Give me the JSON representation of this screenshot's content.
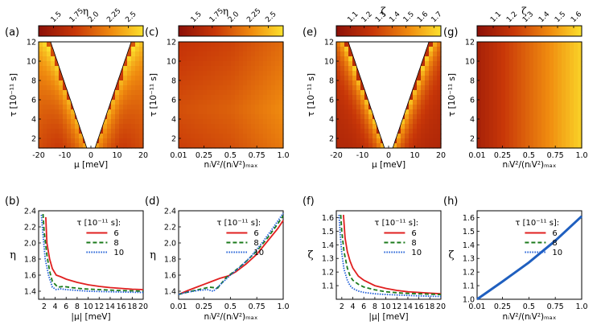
{
  "chart_data": [
    {
      "panel": "(a)",
      "type": "heatmap",
      "colorbar": {
        "symbol": "η",
        "ticks": [
          "1.5",
          "1.75",
          "2.0",
          "2.25",
          "2.5"
        ],
        "range": [
          1.3,
          2.7
        ]
      },
      "xlabel": "μ [meV]",
      "ylabel": "τ [10⁻¹¹ s]",
      "xticks": [
        "-20",
        "-10",
        "0",
        "10",
        "20"
      ],
      "yticks": [
        "2",
        "4",
        "6",
        "8",
        "10",
        "12"
      ],
      "xlim": [
        -20,
        20
      ],
      "ylim": [
        1,
        12
      ],
      "excluded_region": "white cusp around μ = 0 (boundary |μ| ≈ 1.4·τ⁻¹)"
    },
    {
      "panel": "(b)",
      "type": "line",
      "xlabel": "|μ| [meV]",
      "ylabel": "η",
      "xticks": [
        "2",
        "4",
        "6",
        "8",
        "10",
        "12",
        "14",
        "16",
        "18",
        "20"
      ],
      "yticks": [
        "1.4",
        "1.6",
        "1.8",
        "2.0",
        "2.2",
        "2.4"
      ],
      "xlim": [
        1,
        20
      ],
      "ylim": [
        1.3,
        2.4
      ],
      "legend_title": "τ [10⁻¹¹ s]:",
      "series": [
        {
          "name": "6",
          "color": "#e02020",
          "style": "solid",
          "x": [
            2.3,
            2.5,
            3,
            3.5,
            4.2,
            5,
            6,
            8,
            10,
            12,
            14,
            16,
            18,
            20
          ],
          "y": [
            2.32,
            2.0,
            1.8,
            1.68,
            1.6,
            1.58,
            1.55,
            1.51,
            1.48,
            1.46,
            1.445,
            1.435,
            1.425,
            1.42
          ]
        },
        {
          "name": "8",
          "color": "#1b7a1b",
          "style": "dashed",
          "x": [
            1.8,
            2,
            2.5,
            3,
            3.5,
            4.5,
            5.5,
            7,
            9,
            12,
            15,
            18,
            20
          ],
          "y": [
            2.36,
            2.15,
            1.85,
            1.65,
            1.52,
            1.45,
            1.46,
            1.445,
            1.43,
            1.42,
            1.41,
            1.405,
            1.4
          ]
        },
        {
          "name": "10",
          "color": "#1e5dd6",
          "style": "dotted",
          "x": [
            1.5,
            1.8,
            2.2,
            2.8,
            3.5,
            4.2,
            5,
            6,
            8,
            10,
            13,
            16,
            20
          ],
          "y": [
            2.35,
            2.1,
            1.8,
            1.6,
            1.45,
            1.42,
            1.43,
            1.42,
            1.41,
            1.4,
            1.395,
            1.39,
            1.385
          ]
        }
      ]
    },
    {
      "panel": "(c)",
      "type": "heatmap",
      "colorbar": {
        "symbol": "η",
        "ticks": [
          "1.5",
          "1.75",
          "2.0",
          "2.25",
          "2.5"
        ],
        "range": [
          1.3,
          2.7
        ]
      },
      "xlabel": "nᵢV²/(nᵢV²)ₘₐₓ",
      "ylabel": "τ [10⁻¹¹ s]",
      "xticks": [
        "0.01",
        "0.25",
        "0.5",
        "0.75",
        "1.0"
      ],
      "yticks": [
        "2",
        "4",
        "6",
        "8",
        "10",
        "12"
      ],
      "xlim": [
        0.01,
        1.0
      ],
      "ylim": [
        1,
        12
      ]
    },
    {
      "panel": "(d)",
      "type": "line",
      "xlabel": "nᵢV²/(nᵢV²)ₘₐₓ",
      "ylabel": "η",
      "xticks": [
        "0.01",
        "0.25",
        "0.5",
        "0.75",
        "1.0"
      ],
      "yticks": [
        "1.4",
        "1.6",
        "1.8",
        "2.0",
        "2.2",
        "2.4"
      ],
      "xlim": [
        0.01,
        1.0
      ],
      "ylim": [
        1.3,
        2.4
      ],
      "legend_title": "τ [10⁻¹¹ s]:",
      "series": [
        {
          "name": "6",
          "color": "#e02020",
          "style": "solid",
          "x": [
            0.01,
            0.1,
            0.2,
            0.3,
            0.4,
            0.48,
            0.55,
            0.65,
            0.75,
            0.85,
            0.95,
            1.0
          ],
          "y": [
            1.36,
            1.41,
            1.46,
            1.51,
            1.56,
            1.59,
            1.64,
            1.74,
            1.86,
            2.02,
            2.18,
            2.28
          ]
        },
        {
          "name": "8",
          "color": "#1b7a1b",
          "style": "dashed",
          "x": [
            0.01,
            0.1,
            0.2,
            0.3,
            0.38,
            0.46,
            0.55,
            0.65,
            0.75,
            0.85,
            0.95,
            1.0
          ],
          "y": [
            1.36,
            1.39,
            1.42,
            1.45,
            1.44,
            1.57,
            1.66,
            1.77,
            1.9,
            2.06,
            2.24,
            2.34
          ]
        },
        {
          "name": "10",
          "color": "#1e5dd6",
          "style": "dotted",
          "x": [
            0.01,
            0.1,
            0.2,
            0.28,
            0.34,
            0.42,
            0.5,
            0.6,
            0.7,
            0.8,
            0.9,
            1.0
          ],
          "y": [
            1.36,
            1.39,
            1.41,
            1.42,
            1.4,
            1.5,
            1.6,
            1.71,
            1.84,
            2.0,
            2.18,
            2.37
          ]
        }
      ]
    },
    {
      "panel": "(e)",
      "type": "heatmap",
      "colorbar": {
        "symbol": "ζ",
        "ticks": [
          "1.1",
          "1.2",
          "1.3",
          "1.4",
          "1.5",
          "1.6",
          "1.7"
        ],
        "range": [
          1.0,
          1.75
        ]
      },
      "xlabel": "μ [meV]",
      "ylabel": "τ [10⁻¹¹ s]",
      "xticks": [
        "-20",
        "-10",
        "0",
        "10",
        "20"
      ],
      "yticks": [
        "2",
        "4",
        "6",
        "8",
        "10",
        "12"
      ],
      "xlim": [
        -20,
        20
      ],
      "ylim": [
        1,
        12
      ]
    },
    {
      "panel": "(f)",
      "type": "line",
      "xlabel": "|μ| [meV]",
      "ylabel": "ζ",
      "xticks": [
        "2",
        "4",
        "6",
        "8",
        "10",
        "12",
        "14",
        "16",
        "18",
        "20"
      ],
      "yticks": [
        "1.1",
        "1.2",
        "1.3",
        "1.4",
        "1.5",
        "1.6"
      ],
      "xlim": [
        1,
        20
      ],
      "ylim": [
        1.0,
        1.65
      ],
      "legend_title": "τ [10⁻¹¹ s]:",
      "series": [
        {
          "name": "6",
          "color": "#e02020",
          "style": "solid",
          "x": [
            2.3,
            2.6,
            3,
            3.5,
            4,
            5,
            6,
            8,
            10,
            12,
            14,
            16,
            18,
            20
          ],
          "y": [
            1.62,
            1.45,
            1.35,
            1.28,
            1.23,
            1.17,
            1.14,
            1.1,
            1.08,
            1.065,
            1.055,
            1.05,
            1.045,
            1.04
          ]
        },
        {
          "name": "8",
          "color": "#1b7a1b",
          "style": "dashed",
          "x": [
            1.8,
            2,
            2.4,
            3,
            3.5,
            4,
            5,
            6,
            8,
            10,
            13,
            16,
            20
          ],
          "y": [
            1.62,
            1.5,
            1.35,
            1.23,
            1.17,
            1.14,
            1.11,
            1.09,
            1.07,
            1.055,
            1.045,
            1.04,
            1.035
          ]
        },
        {
          "name": "10",
          "color": "#1e5dd6",
          "style": "dotted",
          "x": [
            1.5,
            1.7,
            2,
            2.4,
            3,
            3.5,
            4,
            5,
            6,
            8,
            10,
            13,
            16,
            20
          ],
          "y": [
            1.62,
            1.48,
            1.34,
            1.22,
            1.14,
            1.1,
            1.08,
            1.06,
            1.05,
            1.04,
            1.035,
            1.03,
            1.025,
            1.02
          ]
        }
      ]
    },
    {
      "panel": "(g)",
      "type": "heatmap",
      "colorbar": {
        "symbol": "ζ",
        "ticks": [
          "1.1",
          "1.2",
          "1.3",
          "1.4",
          "1.5",
          "1.6"
        ],
        "range": [
          1.0,
          1.65
        ]
      },
      "xlabel": "nᵢV²/(nᵢV²)ₘₐₓ",
      "ylabel": "τ [10⁻¹¹ s]",
      "xticks": [
        "0.01",
        "0.25",
        "0.5",
        "0.75",
        "1.0"
      ],
      "yticks": [
        "2",
        "4",
        "6",
        "8",
        "10",
        "12"
      ],
      "xlim": [
        0.01,
        1.0
      ],
      "ylim": [
        1,
        12
      ]
    },
    {
      "panel": "(h)",
      "type": "line",
      "xlabel": "nᵢV²/(nᵢV²)ₘₐₓ",
      "ylabel": "ζ",
      "xticks": [
        "0.01",
        "0.25",
        "0.5",
        "0.75",
        "1.0"
      ],
      "yticks": [
        "1.0",
        "1.1",
        "1.2",
        "1.3",
        "1.4",
        "1.5",
        "1.6"
      ],
      "xlim": [
        0.01,
        1.0
      ],
      "ylim": [
        1.0,
        1.65
      ],
      "legend_title": "τ [10⁻¹¹ s]:",
      "series": [
        {
          "name": "6",
          "color": "#e02020",
          "style": "solid",
          "x": [
            0.01,
            0.25,
            0.5,
            0.75,
            1.0
          ],
          "y": [
            1.0,
            1.13,
            1.27,
            1.43,
            1.61
          ]
        },
        {
          "name": "8",
          "color": "#1b7a1b",
          "style": "dashed",
          "x": [
            0.01,
            0.25,
            0.5,
            0.75,
            1.0
          ],
          "y": [
            1.0,
            1.13,
            1.27,
            1.43,
            1.61
          ]
        },
        {
          "name": "10",
          "color": "#1e5dd6",
          "style": "dotted",
          "x": [
            0.01,
            0.25,
            0.5,
            0.75,
            1.0
          ],
          "y": [
            1.0,
            1.13,
            1.27,
            1.43,
            1.61
          ]
        }
      ]
    }
  ]
}
